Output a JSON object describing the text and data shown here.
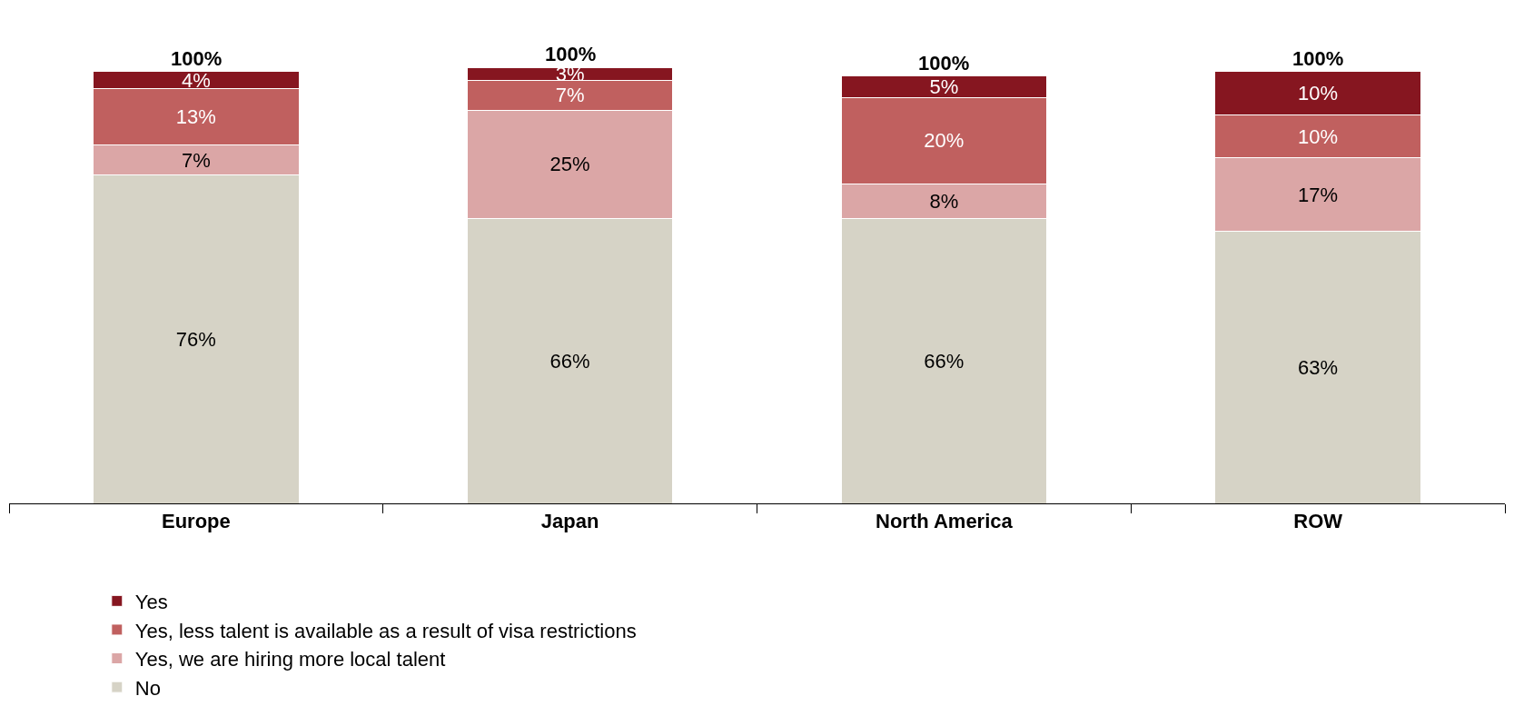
{
  "chart_data": {
    "type": "bar",
    "stacked": true,
    "categories": [
      "Europe",
      "Japan",
      "North America",
      "ROW"
    ],
    "series": [
      {
        "name": "No",
        "color": "#d6d3c6",
        "values": [
          76,
          66,
          66,
          63
        ],
        "value_labels": [
          "76%",
          "66%",
          "66%",
          "63%"
        ]
      },
      {
        "name": "Yes, we are hiring more local talent",
        "color": "#dba6a6",
        "values": [
          7,
          25,
          8,
          17
        ],
        "value_labels": [
          "7%",
          "25%",
          "8%",
          "17%"
        ]
      },
      {
        "name": "Yes, less talent is available as a result of visa restrictions",
        "color": "#c0605f",
        "values": [
          13,
          7,
          20,
          10
        ],
        "value_labels": [
          "13%",
          "7%",
          "20%",
          "10%"
        ]
      },
      {
        "name": "Yes",
        "color": "#861620",
        "values": [
          4,
          3,
          5,
          10
        ],
        "value_labels": [
          "4%",
          "3%",
          "5%",
          "10%"
        ]
      }
    ],
    "totals": [
      "100%",
      "100%",
      "100%",
      "100%"
    ],
    "legend": "bottom",
    "tick_labels": "x"
  }
}
